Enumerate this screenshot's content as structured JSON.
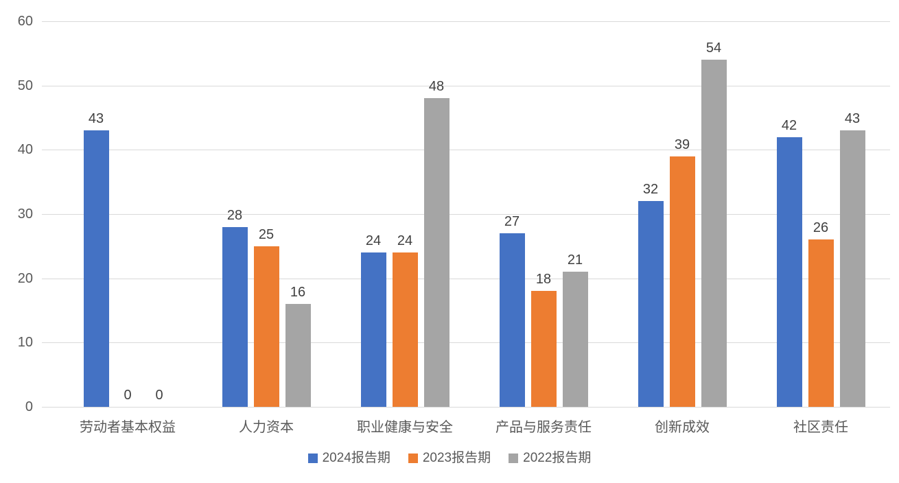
{
  "chart_data": {
    "type": "bar",
    "title": "",
    "categories": [
      "劳动者基本权益",
      "人力资本",
      "职业健康与安全",
      "产品与服务责任",
      "创新成效",
      "社区责任"
    ],
    "series": [
      {
        "name": "2024报告期",
        "color": "#4472C4",
        "values": [
          43,
          28,
          24,
          27,
          32,
          42
        ]
      },
      {
        "name": "2023报告期",
        "color": "#ED7D31",
        "values": [
          0,
          25,
          24,
          18,
          39,
          26
        ]
      },
      {
        "name": "2022报告期",
        "color": "#A5A5A5",
        "values": [
          0,
          16,
          48,
          21,
          54,
          43
        ]
      }
    ],
    "ylim": [
      0,
      60
    ],
    "yticks": [
      0,
      10,
      20,
      30,
      40,
      50,
      60
    ],
    "grid": true,
    "legend_position": "bottom",
    "value_labels": true
  },
  "colors": {
    "background": "#FFFFFF",
    "gridline": "#D9D9D9",
    "axis_text": "#595959",
    "value_label_text": "#404040"
  }
}
